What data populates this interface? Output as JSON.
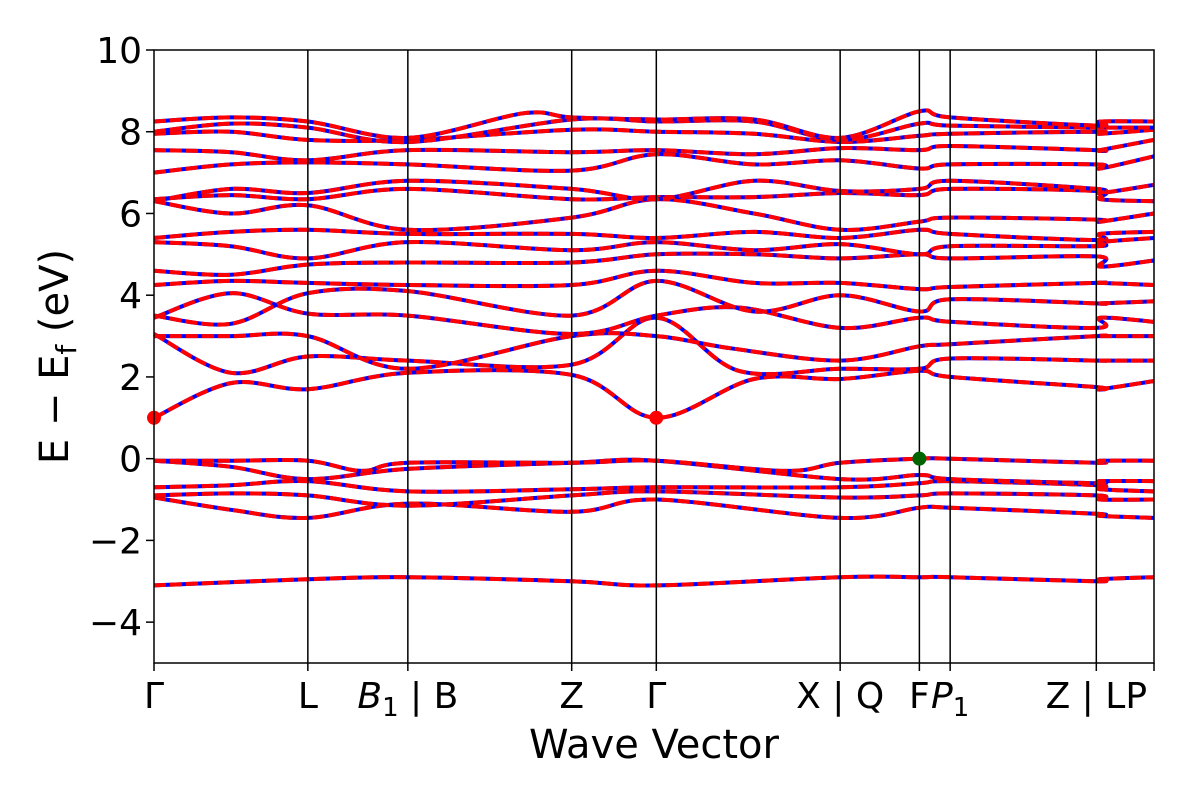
{
  "chart_data": {
    "type": "line",
    "title": "",
    "xlabel": "Wave Vector",
    "ylabel": "E − E",
    "ylabel_subscript": "f",
    "ylabel_unit": " (eV)",
    "ylim": [
      -5,
      10
    ],
    "yticks": [
      -4,
      -2,
      0,
      2,
      4,
      6,
      8,
      10
    ],
    "ytick_labels": [
      "−4",
      "−2",
      "0",
      "2",
      "4",
      "6",
      "8",
      "10"
    ],
    "grid": false,
    "xlim": [
      0,
      13.0
    ],
    "kpoints": [
      {
        "x": 0.0,
        "label": "Γ",
        "italic": false,
        "sub": ""
      },
      {
        "x": 2.0,
        "label": "L",
        "italic": false,
        "sub": ""
      },
      {
        "x": 3.3,
        "label": "B",
        "italic": true,
        "sub": "1",
        "suffix": " | B"
      },
      {
        "x": 5.43,
        "label": "Z",
        "italic": false,
        "sub": ""
      },
      {
        "x": 6.53,
        "label": "Γ",
        "italic": false,
        "sub": ""
      },
      {
        "x": 8.92,
        "label": "X | Q",
        "italic": false,
        "sub": ""
      },
      {
        "x": 9.95,
        "label": "F",
        "italic": false,
        "sub": ""
      },
      {
        "x": 10.35,
        "label": "P",
        "italic": true,
        "sub": "1"
      },
      {
        "x": 12.25,
        "label": "Z | LP",
        "italic": false,
        "sub": ""
      },
      {
        "x": 13.0,
        "label": "",
        "italic": false,
        "sub": ""
      }
    ],
    "series_colors": {
      "dft": "#ff0000",
      "fit": "#0000ff"
    },
    "special_points": [
      {
        "x": 0.0,
        "y": 1.0,
        "color": "#ff0000"
      },
      {
        "x": 6.53,
        "y": 1.0,
        "color": "#ff0000"
      },
      {
        "x": 9.95,
        "y": 0.0,
        "color": "#006400"
      }
    ],
    "bands": [
      [
        [
          0,
          -3.1
        ],
        [
          2.0,
          -2.95
        ],
        [
          3.3,
          -2.9
        ],
        [
          5.43,
          -3.0
        ],
        [
          6.53,
          -3.1
        ],
        [
          8.92,
          -2.9
        ],
        [
          9.95,
          -2.9
        ],
        [
          10.35,
          -2.9
        ],
        [
          12.25,
          -3.0
        ],
        [
          12.3,
          -2.95
        ],
        [
          13.0,
          -2.9
        ]
      ],
      [
        [
          0,
          -0.95
        ],
        [
          1.0,
          -1.25
        ],
        [
          2.0,
          -1.45
        ],
        [
          3.3,
          -1.1
        ],
        [
          5.43,
          -1.3
        ],
        [
          6.53,
          -1.0
        ],
        [
          8.92,
          -1.45
        ],
        [
          9.95,
          -1.2
        ],
        [
          10.35,
          -1.2
        ],
        [
          12.25,
          -1.35
        ],
        [
          12.3,
          -1.4
        ],
        [
          13.0,
          -1.45
        ]
      ],
      [
        [
          0,
          -0.9
        ],
        [
          1.0,
          -0.85
        ],
        [
          2.0,
          -0.9
        ],
        [
          3.3,
          -1.15
        ],
        [
          5.43,
          -0.9
        ],
        [
          6.53,
          -0.8
        ],
        [
          8.92,
          -0.95
        ],
        [
          9.95,
          -0.9
        ],
        [
          10.35,
          -0.85
        ],
        [
          12.25,
          -0.9
        ],
        [
          12.3,
          -1.0
        ],
        [
          13.0,
          -1.0
        ]
      ],
      [
        [
          0,
          -0.7
        ],
        [
          1.0,
          -0.65
        ],
        [
          2.0,
          -0.55
        ],
        [
          3.3,
          -0.8
        ],
        [
          5.43,
          -0.75
        ],
        [
          6.53,
          -0.7
        ],
        [
          8.92,
          -0.7
        ],
        [
          9.95,
          -0.6
        ],
        [
          10.35,
          -0.55
        ],
        [
          12.25,
          -0.65
        ],
        [
          12.3,
          -0.75
        ],
        [
          13.0,
          -0.8
        ]
      ],
      [
        [
          0,
          -0.05
        ],
        [
          1.0,
          -0.2
        ],
        [
          2.0,
          -0.5
        ],
        [
          3.3,
          -0.25
        ],
        [
          5.43,
          -0.1
        ],
        [
          6.53,
          -0.05
        ],
        [
          8.92,
          -0.5
        ],
        [
          9.95,
          -0.4
        ],
        [
          10.35,
          -0.5
        ],
        [
          12.25,
          -0.6
        ],
        [
          12.3,
          -0.55
        ],
        [
          13.0,
          -0.55
        ]
      ],
      [
        [
          0,
          -0.05
        ],
        [
          1.0,
          -0.05
        ],
        [
          2.0,
          -0.05
        ],
        [
          2.7,
          -0.3
        ],
        [
          3.3,
          -0.1
        ],
        [
          5.43,
          -0.1
        ],
        [
          6.53,
          -0.05
        ],
        [
          8.2,
          -0.3
        ],
        [
          8.92,
          -0.1
        ],
        [
          9.95,
          0.0
        ],
        [
          10.35,
          0.0
        ],
        [
          12.25,
          -0.1
        ],
        [
          12.3,
          -0.05
        ],
        [
          13.0,
          -0.05
        ]
      ],
      [
        [
          0,
          1.0
        ],
        [
          1.0,
          1.85
        ],
        [
          2.0,
          1.7
        ],
        [
          3.3,
          2.1
        ],
        [
          5.43,
          2.05
        ],
        [
          6.53,
          1.0
        ],
        [
          7.8,
          1.95
        ],
        [
          8.92,
          1.95
        ],
        [
          9.95,
          2.15
        ],
        [
          10.35,
          2.0
        ],
        [
          12.25,
          1.75
        ],
        [
          12.3,
          1.7
        ],
        [
          13.0,
          1.9
        ]
      ],
      [
        [
          0,
          3.05
        ],
        [
          1.0,
          2.1
        ],
        [
          2.0,
          2.5
        ],
        [
          3.3,
          2.4
        ],
        [
          5.43,
          2.3
        ],
        [
          6.53,
          3.45
        ],
        [
          7.6,
          2.15
        ],
        [
          8.92,
          2.2
        ],
        [
          9.95,
          2.2
        ],
        [
          10.35,
          2.45
        ],
        [
          12.25,
          2.4
        ],
        [
          12.3,
          2.4
        ],
        [
          13.0,
          2.4
        ]
      ],
      [
        [
          0,
          3.0
        ],
        [
          1.0,
          3.0
        ],
        [
          2.0,
          3.0
        ],
        [
          3.3,
          2.2
        ],
        [
          5.43,
          3.0
        ],
        [
          6.53,
          3.0
        ],
        [
          7.5,
          2.7
        ],
        [
          8.92,
          2.4
        ],
        [
          9.95,
          2.75
        ],
        [
          10.35,
          2.8
        ],
        [
          12.25,
          3.0
        ],
        [
          12.3,
          3.0
        ],
        [
          13.0,
          3.0
        ]
      ],
      [
        [
          0,
          3.45
        ],
        [
          1.0,
          4.05
        ],
        [
          2.0,
          3.55
        ],
        [
          3.3,
          3.5
        ],
        [
          5.43,
          3.05
        ],
        [
          6.53,
          3.5
        ],
        [
          7.6,
          3.7
        ],
        [
          8.92,
          3.2
        ],
        [
          9.95,
          3.45
        ],
        [
          10.35,
          3.35
        ],
        [
          12.25,
          3.2
        ],
        [
          12.3,
          3.45
        ],
        [
          13.0,
          3.35
        ]
      ],
      [
        [
          0,
          3.5
        ],
        [
          1.0,
          3.3
        ],
        [
          2.0,
          4.05
        ],
        [
          3.3,
          4.1
        ],
        [
          5.43,
          3.5
        ],
        [
          6.53,
          4.35
        ],
        [
          7.8,
          3.6
        ],
        [
          8.92,
          4.0
        ],
        [
          9.95,
          3.6
        ],
        [
          10.35,
          3.9
        ],
        [
          12.25,
          3.8
        ],
        [
          12.3,
          3.8
        ],
        [
          13.0,
          3.85
        ]
      ],
      [
        [
          0,
          4.25
        ],
        [
          1.0,
          4.35
        ],
        [
          2.0,
          4.3
        ],
        [
          3.3,
          4.25
        ],
        [
          5.43,
          4.25
        ],
        [
          6.53,
          4.6
        ],
        [
          7.8,
          4.3
        ],
        [
          8.92,
          4.3
        ],
        [
          9.95,
          4.15
        ],
        [
          10.35,
          4.2
        ],
        [
          12.25,
          4.3
        ],
        [
          12.3,
          4.3
        ],
        [
          13.0,
          4.25
        ]
      ],
      [
        [
          0,
          4.6
        ],
        [
          1.0,
          4.5
        ],
        [
          2.0,
          4.75
        ],
        [
          3.3,
          4.8
        ],
        [
          5.43,
          4.8
        ],
        [
          6.53,
          5.0
        ],
        [
          7.8,
          5.0
        ],
        [
          8.92,
          4.9
        ],
        [
          9.95,
          5.0
        ],
        [
          10.35,
          4.9
        ],
        [
          12.25,
          4.95
        ],
        [
          12.3,
          4.7
        ],
        [
          13.0,
          4.85
        ]
      ],
      [
        [
          0,
          5.3
        ],
        [
          1.0,
          5.2
        ],
        [
          2.0,
          4.9
        ],
        [
          3.3,
          5.3
        ],
        [
          5.43,
          5.1
        ],
        [
          6.53,
          5.3
        ],
        [
          7.8,
          5.1
        ],
        [
          8.92,
          5.25
        ],
        [
          9.95,
          5.0
        ],
        [
          10.35,
          5.2
        ],
        [
          12.25,
          5.2
        ],
        [
          12.3,
          5.3
        ],
        [
          13.0,
          5.4
        ]
      ],
      [
        [
          0,
          5.4
        ],
        [
          1.0,
          5.55
        ],
        [
          2.0,
          5.6
        ],
        [
          3.3,
          5.5
        ],
        [
          5.43,
          5.5
        ],
        [
          6.53,
          5.4
        ],
        [
          7.8,
          5.55
        ],
        [
          8.92,
          5.4
        ],
        [
          9.95,
          5.6
        ],
        [
          10.35,
          5.5
        ],
        [
          12.25,
          5.35
        ],
        [
          12.3,
          5.5
        ],
        [
          13.0,
          5.55
        ]
      ],
      [
        [
          0,
          6.3
        ],
        [
          1.0,
          6.0
        ],
        [
          2.0,
          6.2
        ],
        [
          3.3,
          5.6
        ],
        [
          5.43,
          5.9
        ],
        [
          6.53,
          6.35
        ],
        [
          7.8,
          6.0
        ],
        [
          8.92,
          5.6
        ],
        [
          9.95,
          5.8
        ],
        [
          10.35,
          5.9
        ],
        [
          12.25,
          5.85
        ],
        [
          12.3,
          5.8
        ],
        [
          13.0,
          6.0
        ]
      ],
      [
        [
          0,
          6.35
        ],
        [
          1.0,
          6.45
        ],
        [
          2.0,
          6.35
        ],
        [
          3.3,
          6.6
        ],
        [
          5.43,
          6.35
        ],
        [
          6.53,
          6.4
        ],
        [
          7.8,
          6.4
        ],
        [
          8.92,
          6.5
        ],
        [
          9.95,
          6.45
        ],
        [
          10.35,
          6.6
        ],
        [
          12.25,
          6.55
        ],
        [
          12.3,
          6.35
        ],
        [
          13.0,
          6.3
        ]
      ],
      [
        [
          0,
          6.3
        ],
        [
          1.0,
          6.6
        ],
        [
          2.0,
          6.5
        ],
        [
          3.3,
          6.8
        ],
        [
          5.43,
          6.6
        ],
        [
          6.53,
          6.35
        ],
        [
          7.8,
          6.8
        ],
        [
          8.92,
          6.55
        ],
        [
          9.95,
          6.6
        ],
        [
          10.35,
          6.8
        ],
        [
          12.25,
          6.6
        ],
        [
          12.3,
          6.5
        ],
        [
          13.0,
          6.7
        ]
      ],
      [
        [
          0,
          7.0
        ],
        [
          1.0,
          7.2
        ],
        [
          2.0,
          7.25
        ],
        [
          3.3,
          7.2
        ],
        [
          5.43,
          7.05
        ],
        [
          6.53,
          7.45
        ],
        [
          7.8,
          7.2
        ],
        [
          8.92,
          7.3
        ],
        [
          9.95,
          7.1
        ],
        [
          10.35,
          7.2
        ],
        [
          12.25,
          7.2
        ],
        [
          12.3,
          7.1
        ],
        [
          13.0,
          7.4
        ]
      ],
      [
        [
          0,
          7.55
        ],
        [
          1.0,
          7.5
        ],
        [
          2.0,
          7.3
        ],
        [
          3.3,
          7.55
        ],
        [
          5.43,
          7.5
        ],
        [
          6.53,
          7.55
        ],
        [
          7.8,
          7.45
        ],
        [
          8.92,
          7.6
        ],
        [
          9.95,
          7.55
        ],
        [
          10.35,
          7.65
        ],
        [
          12.25,
          7.55
        ],
        [
          12.3,
          7.55
        ],
        [
          13.0,
          7.8
        ]
      ],
      [
        [
          0,
          7.95
        ],
        [
          1.0,
          8.0
        ],
        [
          2.0,
          7.8
        ],
        [
          3.3,
          7.8
        ],
        [
          5.43,
          8.05
        ],
        [
          6.53,
          8.0
        ],
        [
          7.8,
          7.95
        ],
        [
          8.92,
          7.75
        ],
        [
          9.95,
          7.9
        ],
        [
          10.35,
          7.95
        ],
        [
          12.25,
          8.0
        ],
        [
          12.3,
          7.95
        ],
        [
          13.0,
          8.05
        ]
      ],
      [
        [
          0,
          8.0
        ],
        [
          1.0,
          8.2
        ],
        [
          2.0,
          8.1
        ],
        [
          3.3,
          7.75
        ],
        [
          5.43,
          8.3
        ],
        [
          6.53,
          8.25
        ],
        [
          7.8,
          8.25
        ],
        [
          8.92,
          7.8
        ],
        [
          9.95,
          8.2
        ],
        [
          10.35,
          8.15
        ],
        [
          12.25,
          8.1
        ],
        [
          12.3,
          8.1
        ],
        [
          13.0,
          8.1
        ]
      ],
      [
        [
          0,
          8.25
        ],
        [
          1.0,
          8.35
        ],
        [
          2.0,
          8.25
        ],
        [
          3.3,
          7.85
        ],
        [
          4.8,
          8.45
        ],
        [
          5.43,
          8.35
        ],
        [
          6.53,
          8.3
        ],
        [
          7.8,
          8.3
        ],
        [
          8.92,
          7.85
        ],
        [
          9.95,
          8.5
        ],
        [
          10.35,
          8.35
        ],
        [
          12.25,
          8.15
        ],
        [
          12.3,
          8.25
        ],
        [
          13.0,
          8.25
        ]
      ]
    ]
  }
}
